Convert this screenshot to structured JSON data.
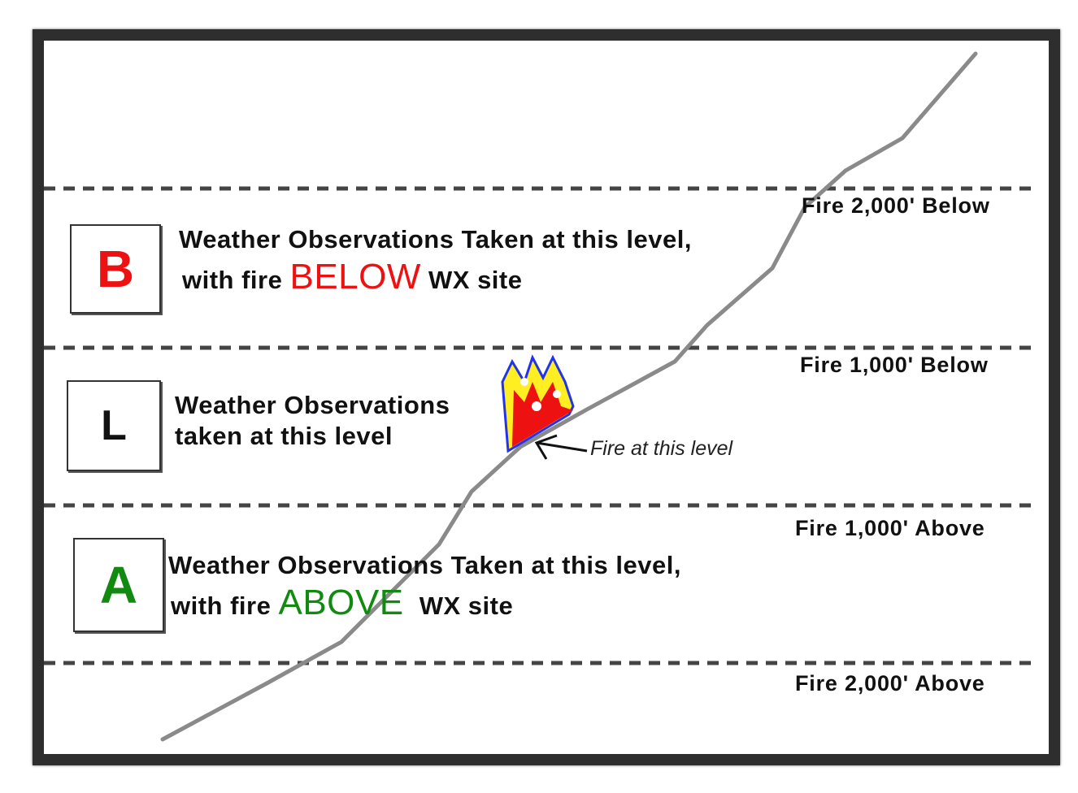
{
  "levels": {
    "fire_2000_below": "Fire 2,000' Below",
    "fire_1000_below": "Fire 1,000' Below",
    "fire_1000_above": "Fire 1,000' Above",
    "fire_2000_above": "Fire 2,000' Above"
  },
  "boxes": {
    "b": {
      "letter": "B",
      "color": "#ee1111",
      "line1": "Weather Observations Taken at this level,",
      "line2_pre": "with fire",
      "emphasis": "BELOW",
      "line2_post": "WX site"
    },
    "l": {
      "letter": "L",
      "color": "#111111",
      "line1": "Weather Observations",
      "line2": "taken at this level"
    },
    "a": {
      "letter": "A",
      "color": "#128a12",
      "line1": "Weather Observations Taken at this level,",
      "line2_pre": "with fire",
      "emphasis": "ABOVE",
      "line2_post": "WX site"
    }
  },
  "fire_note": "Fire at this level",
  "icons": {
    "fire": "flame-icon",
    "arrow": "arrow-icon"
  }
}
